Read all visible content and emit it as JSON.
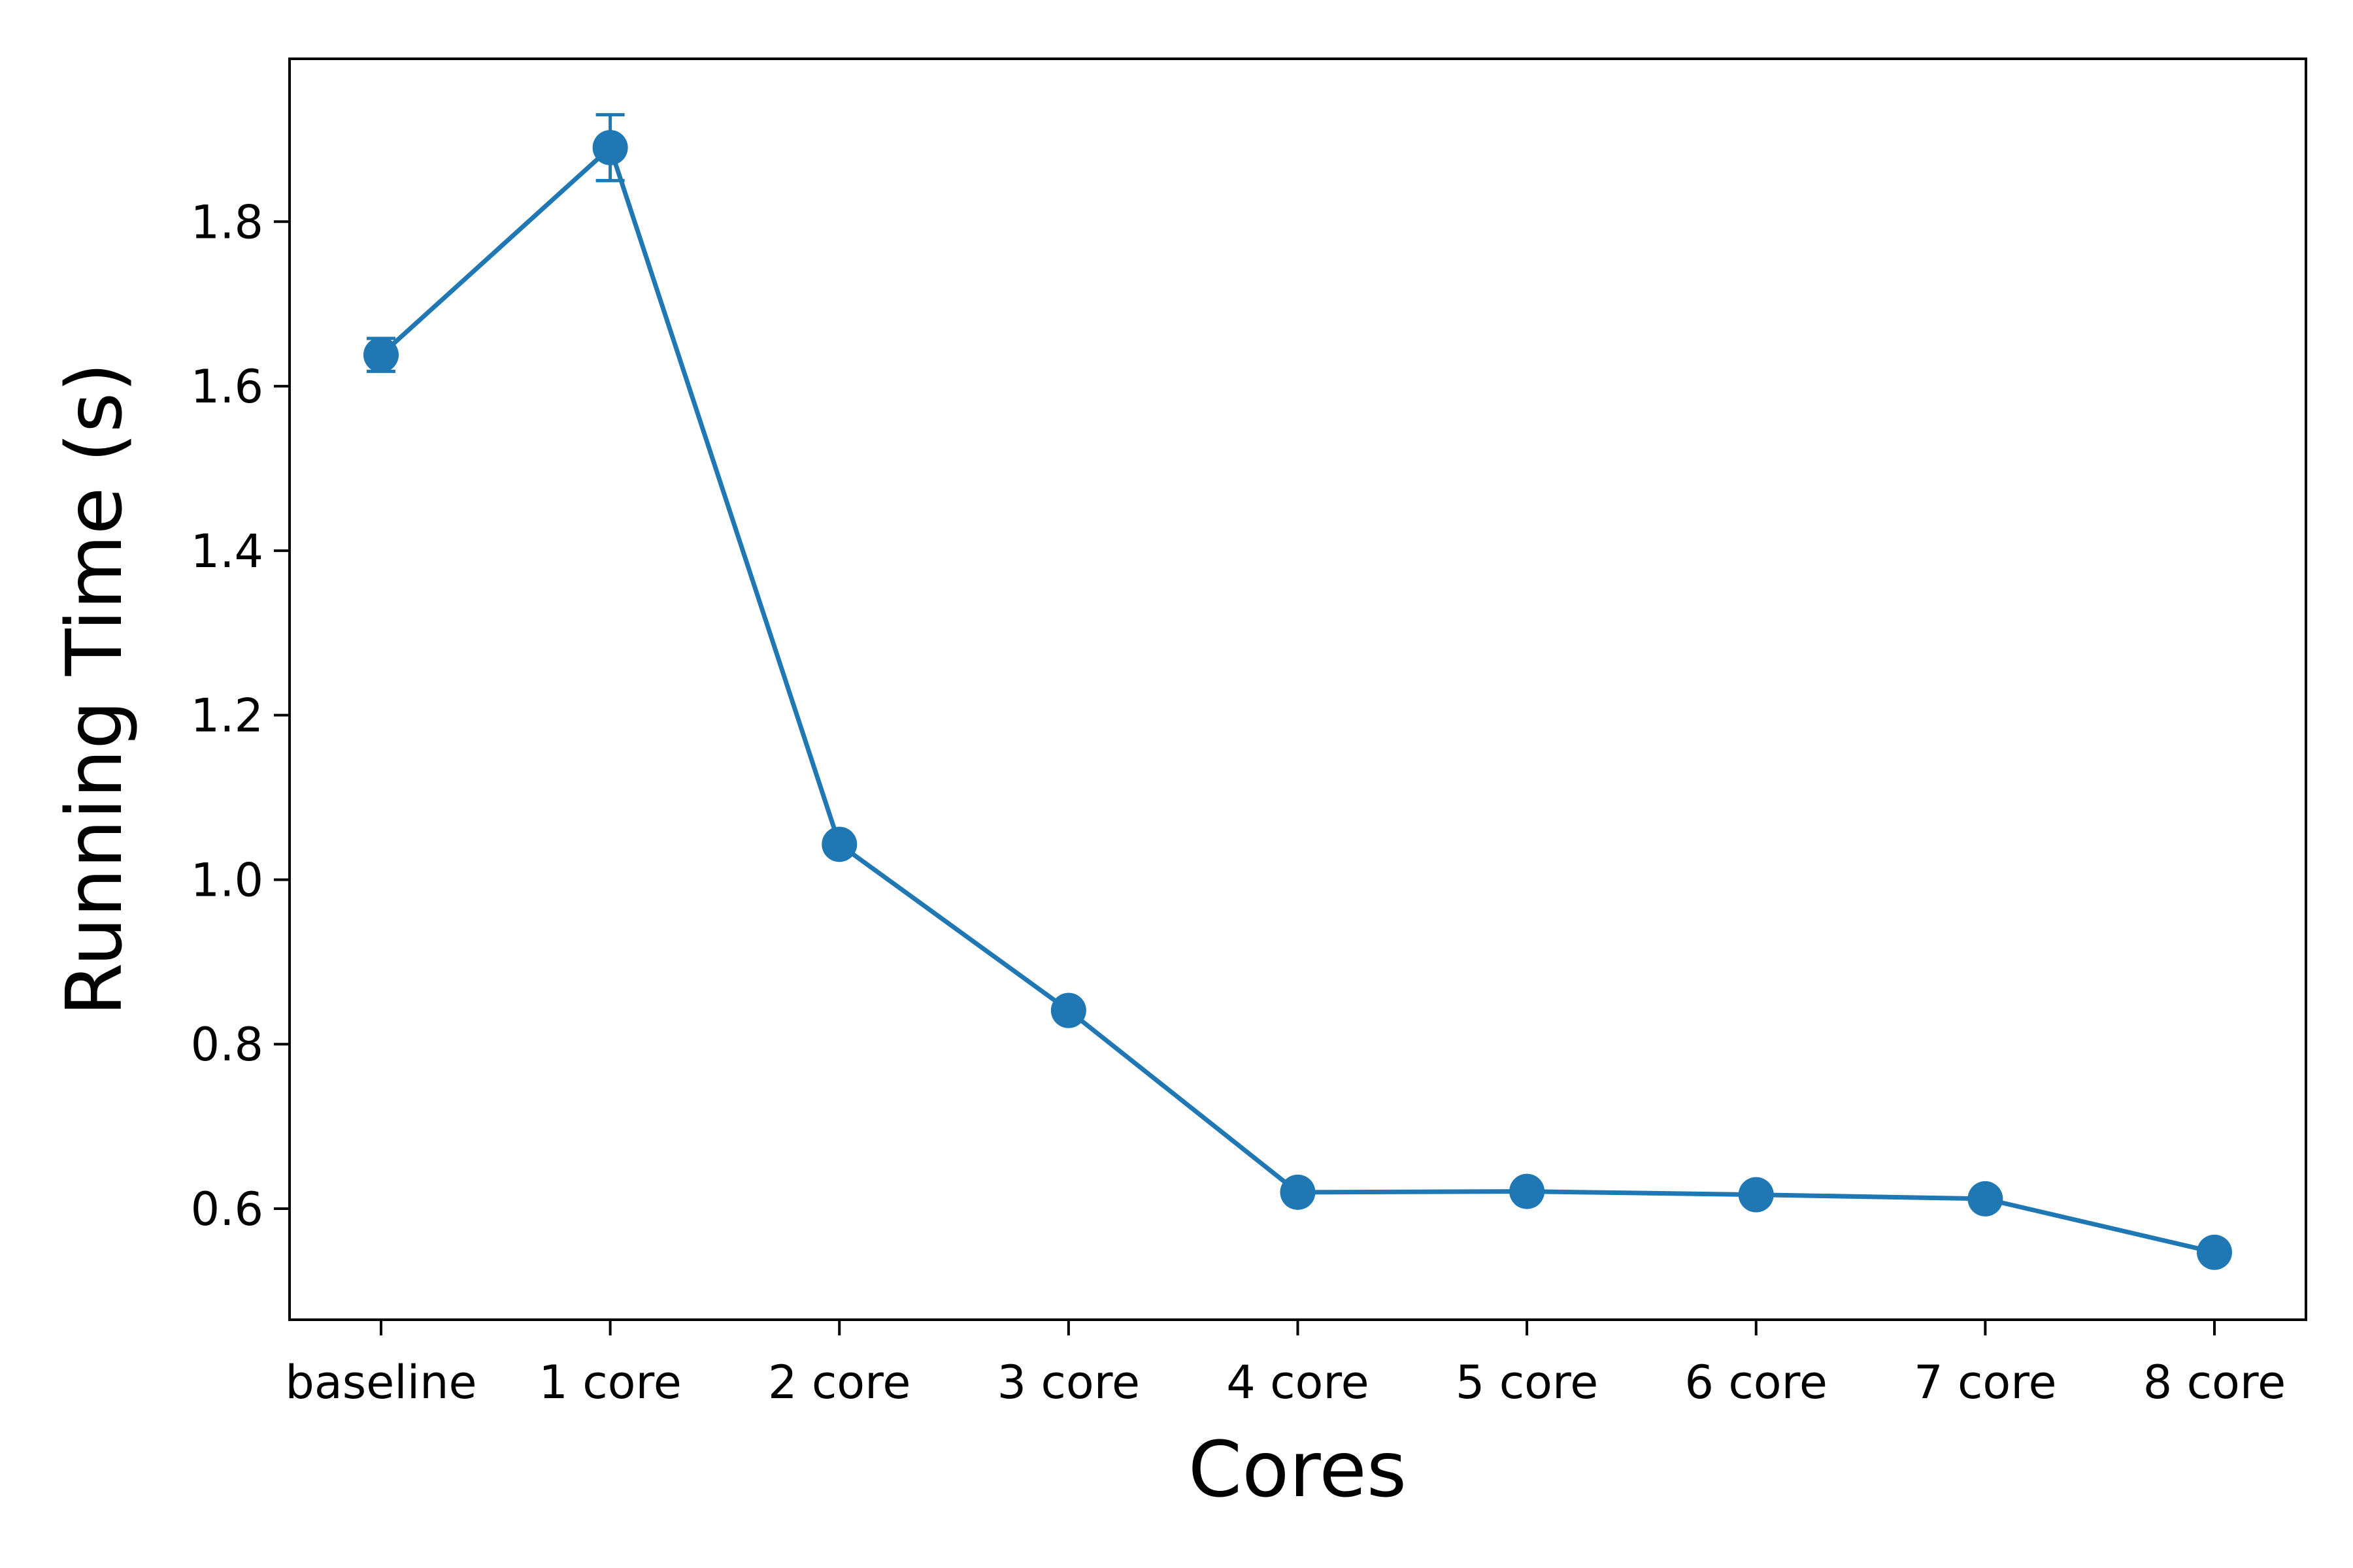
{
  "chart_data": {
    "type": "line",
    "title": "",
    "xlabel": "Cores",
    "ylabel": "Running Time (s)",
    "categories": [
      "baseline",
      "1 core",
      "2 core",
      "3 core",
      "4 core",
      "5 core",
      "6 core",
      "7 core",
      "8 core"
    ],
    "series": [
      {
        "values": [
          1.638,
          1.89,
          1.043,
          0.841,
          0.62,
          0.621,
          0.617,
          0.612,
          0.547
        ],
        "errors": [
          0.02,
          0.04,
          0.008,
          0.006,
          0.005,
          0.005,
          0.005,
          0.005,
          0.01
        ],
        "color": "#1f77b4",
        "marker": "circle"
      }
    ],
    "yticks": [
      "0.6",
      "0.8",
      "1.0",
      "1.2",
      "1.4",
      "1.6",
      "1.8"
    ],
    "ylim": [
      0.465,
      1.998
    ],
    "grid": false,
    "legend": "none"
  }
}
